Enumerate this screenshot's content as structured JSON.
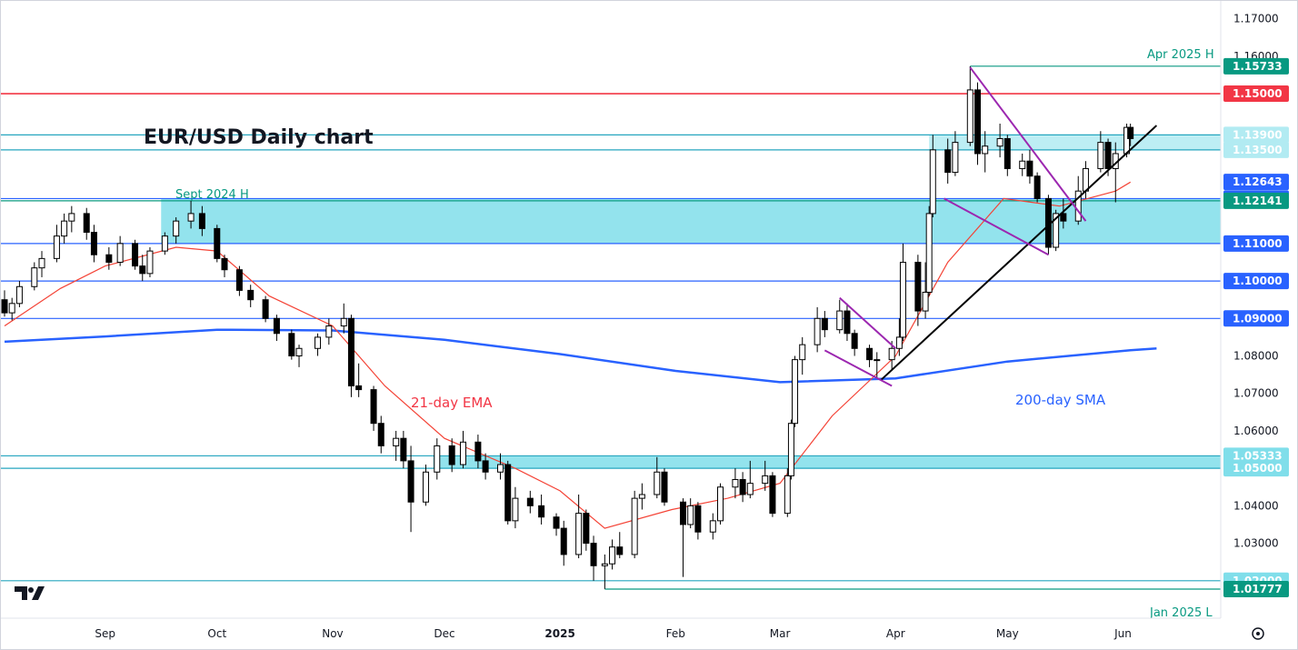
{
  "chart_data": {
    "type": "candlestick",
    "title": "EUR/USD Daily chart",
    "y_axis": {
      "min": 1.01,
      "max": 1.175,
      "ticks": [
        "1.17000",
        "1.16000",
        "1.08000",
        "1.07000",
        "1.06000",
        "1.04000",
        "1.03000"
      ],
      "tick_values": [
        1.17,
        1.16,
        1.08,
        1.07,
        1.06,
        1.04,
        1.03
      ]
    },
    "x_axis": {
      "labels": [
        "Sep",
        "Oct",
        "Nov",
        "Dec",
        "2025",
        "Feb",
        "Mar",
        "Apr",
        "May",
        "Jun"
      ],
      "label_dates": [
        "2024-09-01",
        "2024-10-01",
        "2024-11-01",
        "2024-12-01",
        "2025-01-01",
        "2025-02-01",
        "2025-03-01",
        "2025-04-01",
        "2025-05-01",
        "2025-06-01"
      ],
      "range": [
        "2024-08-05",
        "2025-06-26"
      ]
    },
    "key_levels": [
      {
        "value": 1.15733,
        "label": "1.15733",
        "color": "#089981",
        "style": "thin",
        "note": "Apr 2025 H"
      },
      {
        "value": 1.15,
        "label": "1.15000",
        "color": "#f23645",
        "style": "thick"
      },
      {
        "value": 1.139,
        "label": "1.13900",
        "color": "#26a6bf",
        "style": "thin"
      },
      {
        "value": 1.135,
        "label": "1.13500",
        "color": "#26a6bf",
        "style": "thin"
      },
      {
        "value": 1.12643,
        "label": "1.12643",
        "color": "#2962ff",
        "style": "ema"
      },
      {
        "value": 1.122,
        "label": "1.12200",
        "color": "#2962ff",
        "style": "thin"
      },
      {
        "value": 1.12141,
        "label": "1.12141",
        "color": "#089981",
        "style": "thin"
      },
      {
        "value": 1.11,
        "label": "1.11000",
        "color": "#2962ff",
        "style": "thin"
      },
      {
        "value": 1.1,
        "label": "1.10000",
        "color": "#2962ff",
        "style": "thin"
      },
      {
        "value": 1.09,
        "label": "1.09000",
        "color": "#2962ff",
        "style": "thin"
      },
      {
        "value": 1.05333,
        "label": "1.05333",
        "color": "#26a6bf",
        "style": "thin"
      },
      {
        "value": 1.05,
        "label": "1.05000",
        "color": "#26a6bf",
        "style": "thin"
      },
      {
        "value": 1.02,
        "label": "1.02000",
        "color": "#26a6bf",
        "style": "thin"
      },
      {
        "value": 1.01777,
        "label": "1.01777",
        "color": "#089981",
        "style": "thin",
        "note": "Jan 2025 L"
      }
    ],
    "annotations": {
      "sept_2024_high": "Sept 2024 H",
      "apr_2025_high": "Apr 2025 H",
      "jan_2025_low": "Jan 2025 L",
      "ema_label": "21-day EMA",
      "sma_label": "200-day SMA"
    },
    "zones": [
      {
        "from": 1.11,
        "to": 1.122,
        "color": "#80deea",
        "start": "2024-09-16",
        "label": "Sept 2024 H"
      },
      {
        "from": 1.05,
        "to": 1.05333,
        "color": "#80deea",
        "start": "2024-11-28"
      },
      {
        "from": 1.135,
        "to": 1.139,
        "color": "#b2ebf2",
        "start": "2025-04-10"
      }
    ],
    "series": [
      {
        "name": "21-day EMA",
        "color": "#f44336"
      },
      {
        "name": "200-day SMA",
        "color": "#2962ff"
      }
    ],
    "sma200_points": [
      [
        "2024-08-05",
        1.0838
      ],
      [
        "2024-09-01",
        1.0852
      ],
      [
        "2024-10-01",
        1.087
      ],
      [
        "2024-11-01",
        1.0868
      ],
      [
        "2024-12-01",
        1.0843
      ],
      [
        "2025-01-01",
        1.0805
      ],
      [
        "2025-02-01",
        1.076
      ],
      [
        "2025-03-01",
        1.073
      ],
      [
        "2025-04-01",
        1.074
      ],
      [
        "2025-05-01",
        1.0785
      ],
      [
        "2025-06-03",
        1.0815
      ],
      [
        "2025-06-10",
        1.082
      ]
    ],
    "ema21_points": [
      [
        "2024-08-05",
        1.088
      ],
      [
        "2024-08-20",
        1.098
      ],
      [
        "2024-09-01",
        1.104
      ],
      [
        "2024-09-20",
        1.109
      ],
      [
        "2024-10-01",
        1.108
      ],
      [
        "2024-10-15",
        1.096
      ],
      [
        "2024-11-01",
        1.088
      ],
      [
        "2024-11-15",
        1.072
      ],
      [
        "2024-12-01",
        1.058
      ],
      [
        "2024-12-20",
        1.05
      ],
      [
        "2025-01-01",
        1.044
      ],
      [
        "2025-01-13",
        1.034
      ],
      [
        "2025-01-31",
        1.039
      ],
      [
        "2025-02-15",
        1.042
      ],
      [
        "2025-03-01",
        1.046
      ],
      [
        "2025-03-15",
        1.064
      ],
      [
        "2025-04-01",
        1.08
      ],
      [
        "2025-04-15",
        1.105
      ],
      [
        "2025-04-30",
        1.122
      ],
      [
        "2025-05-15",
        1.12
      ],
      [
        "2025-05-30",
        1.124
      ],
      [
        "2025-06-03",
        1.1264
      ]
    ],
    "candles": [
      [
        "2024-08-05",
        1.095,
        1.0975,
        1.0905,
        1.0915
      ],
      [
        "2024-08-07",
        1.0915,
        1.0955,
        1.0895,
        1.094
      ],
      [
        "2024-08-09",
        1.094,
        1.1,
        1.093,
        1.0985
      ],
      [
        "2024-08-13",
        1.0985,
        1.105,
        1.0975,
        1.1035
      ],
      [
        "2024-08-15",
        1.1035,
        1.108,
        1.101,
        1.106
      ],
      [
        "2024-08-19",
        1.106,
        1.115,
        1.105,
        1.112
      ],
      [
        "2024-08-21",
        1.112,
        1.118,
        1.11,
        1.116
      ],
      [
        "2024-08-23",
        1.116,
        1.12,
        1.113,
        1.118
      ],
      [
        "2024-08-27",
        1.118,
        1.1195,
        1.111,
        1.113
      ],
      [
        "2024-08-29",
        1.113,
        1.115,
        1.105,
        1.107
      ],
      [
        "2024-09-02",
        1.107,
        1.109,
        1.103,
        1.105
      ],
      [
        "2024-09-05",
        1.105,
        1.112,
        1.104,
        1.11
      ],
      [
        "2024-09-09",
        1.11,
        1.111,
        1.103,
        1.104
      ],
      [
        "2024-09-11",
        1.104,
        1.107,
        1.1,
        1.102
      ],
      [
        "2024-09-13",
        1.102,
        1.109,
        1.101,
        1.108
      ],
      [
        "2024-09-17",
        1.108,
        1.113,
        1.107,
        1.112
      ],
      [
        "2024-09-20",
        1.112,
        1.117,
        1.11,
        1.116
      ],
      [
        "2024-09-24",
        1.116,
        1.1214,
        1.114,
        1.118
      ],
      [
        "2024-09-27",
        1.118,
        1.12,
        1.112,
        1.114
      ],
      [
        "2024-10-01",
        1.114,
        1.115,
        1.105,
        1.106
      ],
      [
        "2024-10-03",
        1.106,
        1.107,
        1.101,
        1.103
      ],
      [
        "2024-10-07",
        1.103,
        1.104,
        1.096,
        1.0975
      ],
      [
        "2024-10-10",
        1.0975,
        1.099,
        1.093,
        1.095
      ],
      [
        "2024-10-14",
        1.095,
        1.096,
        1.089,
        1.09
      ],
      [
        "2024-10-17",
        1.09,
        1.091,
        1.084,
        1.086
      ],
      [
        "2024-10-21",
        1.086,
        1.087,
        1.079,
        1.08
      ],
      [
        "2024-10-23",
        1.08,
        1.083,
        1.077,
        1.082
      ],
      [
        "2024-10-28",
        1.082,
        1.086,
        1.08,
        1.085
      ],
      [
        "2024-10-31",
        1.085,
        1.09,
        1.083,
        1.088
      ],
      [
        "2024-11-04",
        1.088,
        1.094,
        1.086,
        1.09
      ],
      [
        "2024-11-06",
        1.09,
        1.091,
        1.069,
        1.072
      ],
      [
        "2024-11-08",
        1.072,
        1.078,
        1.069,
        1.071
      ],
      [
        "2024-11-12",
        1.071,
        1.072,
        1.06,
        1.062
      ],
      [
        "2024-11-14",
        1.062,
        1.064,
        1.054,
        1.056
      ],
      [
        "2024-11-18",
        1.056,
        1.06,
        1.052,
        1.058
      ],
      [
        "2024-11-20",
        1.058,
        1.06,
        1.05,
        1.052
      ],
      [
        "2024-11-22",
        1.052,
        1.056,
        1.033,
        1.041
      ],
      [
        "2024-11-26",
        1.041,
        1.051,
        1.04,
        1.049
      ],
      [
        "2024-11-29",
        1.049,
        1.058,
        1.047,
        1.056
      ],
      [
        "2024-12-03",
        1.056,
        1.058,
        1.049,
        1.051
      ],
      [
        "2024-12-06",
        1.051,
        1.06,
        1.05,
        1.057
      ],
      [
        "2024-12-10",
        1.057,
        1.059,
        1.05,
        1.052
      ],
      [
        "2024-12-12",
        1.052,
        1.054,
        1.047,
        1.049
      ],
      [
        "2024-12-16",
        1.049,
        1.054,
        1.047,
        1.051
      ],
      [
        "2024-12-18",
        1.051,
        1.052,
        1.035,
        1.036
      ],
      [
        "2024-12-20",
        1.036,
        1.045,
        1.034,
        1.042
      ],
      [
        "2024-12-24",
        1.042,
        1.044,
        1.038,
        1.04
      ],
      [
        "2024-12-27",
        1.04,
        1.043,
        1.035,
        1.037
      ],
      [
        "2024-12-31",
        1.037,
        1.038,
        1.032,
        1.034
      ],
      [
        "2025-01-02",
        1.034,
        1.036,
        1.024,
        1.027
      ],
      [
        "2025-01-06",
        1.027,
        1.043,
        1.026,
        1.038
      ],
      [
        "2025-01-08",
        1.038,
        1.039,
        1.028,
        1.03
      ],
      [
        "2025-01-10",
        1.03,
        1.032,
        1.02,
        1.024
      ],
      [
        "2025-01-13",
        1.024,
        1.027,
        1.0178,
        1.0245
      ],
      [
        "2025-01-15",
        1.0245,
        1.031,
        1.023,
        1.029
      ],
      [
        "2025-01-17",
        1.029,
        1.033,
        1.026,
        1.027
      ],
      [
        "2025-01-21",
        1.027,
        1.044,
        1.026,
        1.042
      ],
      [
        "2025-01-23",
        1.042,
        1.046,
        1.039,
        1.043
      ],
      [
        "2025-01-27",
        1.043,
        1.053,
        1.042,
        1.049
      ],
      [
        "2025-01-29",
        1.049,
        1.05,
        1.04,
        1.041
      ],
      [
        "2025-02-03",
        1.041,
        1.042,
        1.021,
        1.035
      ],
      [
        "2025-02-05",
        1.035,
        1.042,
        1.034,
        1.04
      ],
      [
        "2025-02-07",
        1.04,
        1.041,
        1.031,
        1.033
      ],
      [
        "2025-02-11",
        1.033,
        1.038,
        1.031,
        1.036
      ],
      [
        "2025-02-13",
        1.036,
        1.046,
        1.035,
        1.045
      ],
      [
        "2025-02-17",
        1.045,
        1.05,
        1.042,
        1.047
      ],
      [
        "2025-02-19",
        1.047,
        1.049,
        1.041,
        1.043
      ],
      [
        "2025-02-21",
        1.043,
        1.052,
        1.042,
        1.046
      ],
      [
        "2025-02-25",
        1.046,
        1.052,
        1.044,
        1.048
      ],
      [
        "2025-02-27",
        1.048,
        1.049,
        1.037,
        1.038
      ],
      [
        "2025-03-03",
        1.038,
        1.05,
        1.037,
        1.048
      ],
      [
        "2025-03-04",
        1.048,
        1.063,
        1.047,
        1.062
      ],
      [
        "2025-03-05",
        1.062,
        1.08,
        1.061,
        1.079
      ],
      [
        "2025-03-07",
        1.079,
        1.085,
        1.075,
        1.083
      ],
      [
        "2025-03-11",
        1.083,
        1.093,
        1.081,
        1.09
      ],
      [
        "2025-03-13",
        1.09,
        1.092,
        1.085,
        1.087
      ],
      [
        "2025-03-17",
        1.087,
        1.095,
        1.086,
        1.092
      ],
      [
        "2025-03-19",
        1.092,
        1.094,
        1.084,
        1.086
      ],
      [
        "2025-03-21",
        1.086,
        1.087,
        1.08,
        1.082
      ],
      [
        "2025-03-25",
        1.082,
        1.083,
        1.077,
        1.079
      ],
      [
        "2025-03-27",
        1.079,
        1.081,
        1.074,
        1.079
      ],
      [
        "2025-03-31",
        1.079,
        1.084,
        1.076,
        1.082
      ],
      [
        "2025-04-02",
        1.082,
        1.09,
        1.08,
        1.085
      ],
      [
        "2025-04-03",
        1.085,
        1.11,
        1.084,
        1.105
      ],
      [
        "2025-04-07",
        1.105,
        1.107,
        1.088,
        1.092
      ],
      [
        "2025-04-09",
        1.092,
        1.105,
        1.09,
        1.097
      ],
      [
        "2025-04-10",
        1.097,
        1.12,
        1.096,
        1.118
      ],
      [
        "2025-04-11",
        1.118,
        1.139,
        1.117,
        1.135
      ],
      [
        "2025-04-15",
        1.135,
        1.138,
        1.126,
        1.129
      ],
      [
        "2025-04-17",
        1.129,
        1.14,
        1.128,
        1.137
      ],
      [
        "2025-04-21",
        1.137,
        1.1573,
        1.136,
        1.151
      ],
      [
        "2025-04-23",
        1.151,
        1.153,
        1.131,
        1.134
      ],
      [
        "2025-04-25",
        1.134,
        1.14,
        1.129,
        1.136
      ],
      [
        "2025-04-29",
        1.136,
        1.142,
        1.133,
        1.138
      ],
      [
        "2025-05-01",
        1.138,
        1.139,
        1.128,
        1.13
      ],
      [
        "2025-05-05",
        1.13,
        1.134,
        1.128,
        1.132
      ],
      [
        "2025-05-07",
        1.132,
        1.135,
        1.126,
        1.128
      ],
      [
        "2025-05-09",
        1.128,
        1.129,
        1.121,
        1.122
      ],
      [
        "2025-05-12",
        1.122,
        1.123,
        1.107,
        1.109
      ],
      [
        "2025-05-14",
        1.109,
        1.119,
        1.108,
        1.118
      ],
      [
        "2025-05-16",
        1.118,
        1.122,
        1.114,
        1.116
      ],
      [
        "2025-05-20",
        1.116,
        1.128,
        1.115,
        1.124
      ],
      [
        "2025-05-22",
        1.124,
        1.132,
        1.122,
        1.13
      ],
      [
        "2025-05-26",
        1.13,
        1.14,
        1.129,
        1.137
      ],
      [
        "2025-05-28",
        1.137,
        1.138,
        1.128,
        1.13
      ],
      [
        "2025-05-30",
        1.13,
        1.137,
        1.121,
        1.134
      ],
      [
        "2025-06-02",
        1.134,
        1.142,
        1.133,
        1.141
      ],
      [
        "2025-06-03",
        1.141,
        1.142,
        1.136,
        1.138
      ]
    ]
  }
}
